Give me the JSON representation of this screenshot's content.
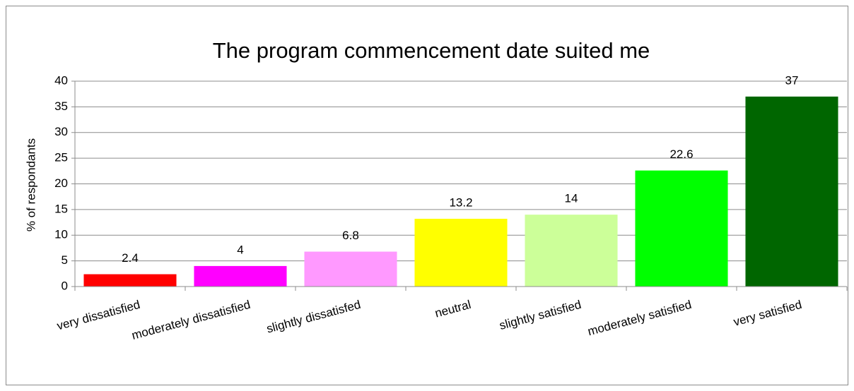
{
  "chart_data": {
    "type": "bar",
    "title": "The program commencement date suited me",
    "y_label": "% of respondants",
    "categories": [
      "very dissatisfied",
      "moderately dissatisfied",
      "slightly dissatisfed",
      "neutral",
      "slightly satisfied",
      "moderately satisfied",
      "very satisfied"
    ],
    "values": [
      2.4,
      4,
      6.8,
      13.2,
      14,
      22.6,
      37
    ],
    "colors": [
      "#ff0000",
      "#ff00ff",
      "#ff99ff",
      "#ffff00",
      "#ccff99",
      "#00ff00",
      "#006600"
    ],
    "ylim": [
      0,
      40
    ],
    "yticks": [
      0,
      5,
      10,
      15,
      20,
      25,
      30,
      35,
      40
    ],
    "grid": true
  }
}
